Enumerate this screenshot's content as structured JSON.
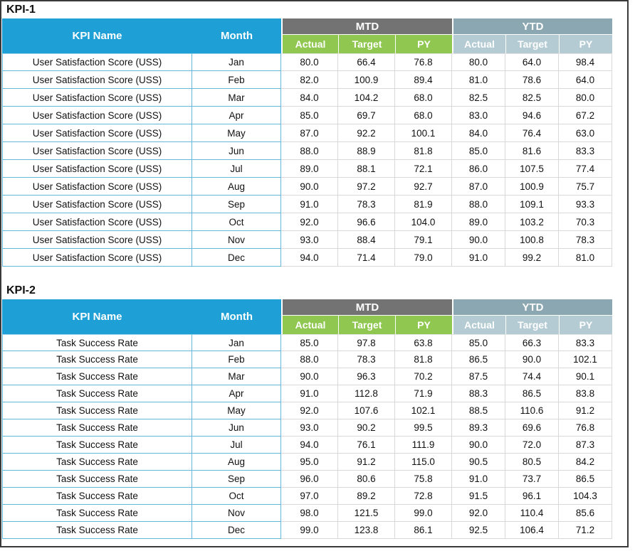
{
  "colors": {
    "header_blue": "#1e9fd6",
    "group_mtd_gray": "#737373",
    "group_ytd_blue": "#8ba8b2",
    "sub_mtd_green": "#8fc750",
    "sub_ytd_light": "#b4cbd3",
    "border_blue": "#63b8db",
    "border_gray": "#d9d9d9",
    "frame": "#3a3a3a"
  },
  "tables": [
    {
      "title": "KPI-1",
      "headers": {
        "kpi_name": "KPI Name",
        "month": "Month",
        "mtd": "MTD",
        "ytd": "YTD",
        "mtd_sub": [
          "Actual",
          "Target",
          "PY"
        ],
        "ytd_sub": [
          "Actual",
          "Target",
          "PY"
        ]
      },
      "rows": [
        {
          "kpi": "User Satisfaction Score (USS)",
          "month": "Jan",
          "mtd": [
            "80.0",
            "66.4",
            "76.8"
          ],
          "ytd": [
            "80.0",
            "64.0",
            "98.4"
          ]
        },
        {
          "kpi": "User Satisfaction Score (USS)",
          "month": "Feb",
          "mtd": [
            "82.0",
            "100.9",
            "89.4"
          ],
          "ytd": [
            "81.0",
            "78.6",
            "64.0"
          ]
        },
        {
          "kpi": "User Satisfaction Score (USS)",
          "month": "Mar",
          "mtd": [
            "84.0",
            "104.2",
            "68.0"
          ],
          "ytd": [
            "82.5",
            "82.5",
            "80.0"
          ]
        },
        {
          "kpi": "User Satisfaction Score (USS)",
          "month": "Apr",
          "mtd": [
            "85.0",
            "69.7",
            "68.0"
          ],
          "ytd": [
            "83.0",
            "94.6",
            "67.2"
          ]
        },
        {
          "kpi": "User Satisfaction Score (USS)",
          "month": "May",
          "mtd": [
            "87.0",
            "92.2",
            "100.1"
          ],
          "ytd": [
            "84.0",
            "76.4",
            "63.0"
          ]
        },
        {
          "kpi": "User Satisfaction Score (USS)",
          "month": "Jun",
          "mtd": [
            "88.0",
            "88.9",
            "81.8"
          ],
          "ytd": [
            "85.0",
            "81.6",
            "83.3"
          ]
        },
        {
          "kpi": "User Satisfaction Score (USS)",
          "month": "Jul",
          "mtd": [
            "89.0",
            "88.1",
            "72.1"
          ],
          "ytd": [
            "86.0",
            "107.5",
            "77.4"
          ]
        },
        {
          "kpi": "User Satisfaction Score (USS)",
          "month": "Aug",
          "mtd": [
            "90.0",
            "97.2",
            "92.7"
          ],
          "ytd": [
            "87.0",
            "100.9",
            "75.7"
          ]
        },
        {
          "kpi": "User Satisfaction Score (USS)",
          "month": "Sep",
          "mtd": [
            "91.0",
            "78.3",
            "81.9"
          ],
          "ytd": [
            "88.0",
            "109.1",
            "93.3"
          ]
        },
        {
          "kpi": "User Satisfaction Score (USS)",
          "month": "Oct",
          "mtd": [
            "92.0",
            "96.6",
            "104.0"
          ],
          "ytd": [
            "89.0",
            "103.2",
            "70.3"
          ]
        },
        {
          "kpi": "User Satisfaction Score (USS)",
          "month": "Nov",
          "mtd": [
            "93.0",
            "88.4",
            "79.1"
          ],
          "ytd": [
            "90.0",
            "100.8",
            "78.3"
          ]
        },
        {
          "kpi": "User Satisfaction Score (USS)",
          "month": "Dec",
          "mtd": [
            "94.0",
            "71.4",
            "79.0"
          ],
          "ytd": [
            "91.0",
            "99.2",
            "81.0"
          ]
        }
      ]
    },
    {
      "title": "KPI-2",
      "headers": {
        "kpi_name": "KPI Name",
        "month": "Month",
        "mtd": "MTD",
        "ytd": "YTD",
        "mtd_sub": [
          "Actual",
          "Target",
          "PY"
        ],
        "ytd_sub": [
          "Actual",
          "Target",
          "PY"
        ]
      },
      "rows": [
        {
          "kpi": "Task Success Rate",
          "month": "Jan",
          "mtd": [
            "85.0",
            "97.8",
            "63.8"
          ],
          "ytd": [
            "85.0",
            "66.3",
            "83.3"
          ]
        },
        {
          "kpi": "Task Success Rate",
          "month": "Feb",
          "mtd": [
            "88.0",
            "78.3",
            "81.8"
          ],
          "ytd": [
            "86.5",
            "90.0",
            "102.1"
          ]
        },
        {
          "kpi": "Task Success Rate",
          "month": "Mar",
          "mtd": [
            "90.0",
            "96.3",
            "70.2"
          ],
          "ytd": [
            "87.5",
            "74.4",
            "90.1"
          ]
        },
        {
          "kpi": "Task Success Rate",
          "month": "Apr",
          "mtd": [
            "91.0",
            "112.8",
            "71.9"
          ],
          "ytd": [
            "88.3",
            "86.5",
            "83.8"
          ]
        },
        {
          "kpi": "Task Success Rate",
          "month": "May",
          "mtd": [
            "92.0",
            "107.6",
            "102.1"
          ],
          "ytd": [
            "88.5",
            "110.6",
            "91.2"
          ]
        },
        {
          "kpi": "Task Success Rate",
          "month": "Jun",
          "mtd": [
            "93.0",
            "90.2",
            "99.5"
          ],
          "ytd": [
            "89.3",
            "69.6",
            "76.8"
          ]
        },
        {
          "kpi": "Task Success Rate",
          "month": "Jul",
          "mtd": [
            "94.0",
            "76.1",
            "111.9"
          ],
          "ytd": [
            "90.0",
            "72.0",
            "87.3"
          ]
        },
        {
          "kpi": "Task Success Rate",
          "month": "Aug",
          "mtd": [
            "95.0",
            "91.2",
            "115.0"
          ],
          "ytd": [
            "90.5",
            "80.5",
            "84.2"
          ]
        },
        {
          "kpi": "Task Success Rate",
          "month": "Sep",
          "mtd": [
            "96.0",
            "80.6",
            "75.8"
          ],
          "ytd": [
            "91.0",
            "73.7",
            "86.5"
          ]
        },
        {
          "kpi": "Task Success Rate",
          "month": "Oct",
          "mtd": [
            "97.0",
            "89.2",
            "72.8"
          ],
          "ytd": [
            "91.5",
            "96.1",
            "104.3"
          ]
        },
        {
          "kpi": "Task Success Rate",
          "month": "Nov",
          "mtd": [
            "98.0",
            "121.5",
            "99.0"
          ],
          "ytd": [
            "92.0",
            "110.4",
            "85.6"
          ]
        },
        {
          "kpi": "Task Success Rate",
          "month": "Dec",
          "mtd": [
            "99.0",
            "123.8",
            "86.1"
          ],
          "ytd": [
            "92.5",
            "106.4",
            "71.2"
          ]
        }
      ]
    }
  ]
}
